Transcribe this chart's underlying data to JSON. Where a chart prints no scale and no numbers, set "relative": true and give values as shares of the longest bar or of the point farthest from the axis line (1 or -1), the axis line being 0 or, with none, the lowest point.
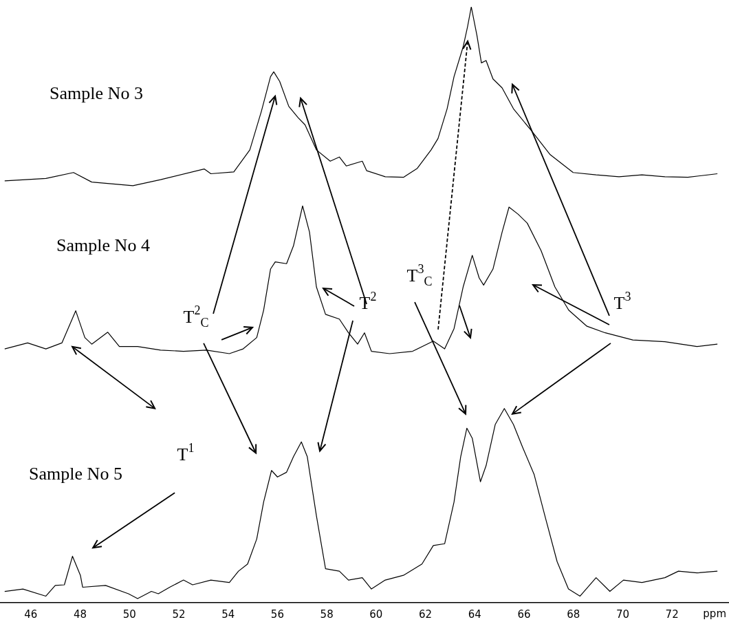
{
  "chart_data": {
    "type": "line",
    "relative": true,
    "xlabel": "ppm",
    "xlim": [
      44.75,
      74.31
    ],
    "xticks": [
      46,
      48,
      50,
      52,
      54,
      56,
      58,
      60,
      62,
      64,
      66,
      68,
      70,
      72
    ],
    "tick_labels": "x",
    "grid": false,
    "legend": false,
    "marker": "none",
    "line_style": "solid",
    "series": [
      {
        "color": "#000000",
        "x": [
          44.94,
          46.61,
          47.73,
          48.47,
          50.14,
          51.26,
          53.03,
          53.3,
          54.23,
          54.88,
          55.35,
          55.72,
          55.85,
          56.09,
          56.46,
          56.84,
          57.12,
          57.58,
          58.14,
          58.51,
          58.79,
          59.44,
          59.62,
          60.37,
          61.11,
          61.67,
          62.23,
          62.51,
          62.88,
          63.16,
          63.53,
          63.71,
          63.86,
          64.09,
          64.27,
          64.46,
          64.74,
          65.11,
          65.57,
          66.32,
          67.06,
          67.99,
          68.92,
          69.85,
          70.78,
          71.71,
          72.64,
          73.84
        ],
        "values": [
          0.708,
          0.712,
          0.722,
          0.706,
          0.7,
          0.71,
          0.728,
          0.72,
          0.723,
          0.76,
          0.825,
          0.883,
          0.891,
          0.875,
          0.833,
          0.814,
          0.802,
          0.76,
          0.741,
          0.748,
          0.733,
          0.741,
          0.725,
          0.715,
          0.714,
          0.729,
          0.76,
          0.779,
          0.829,
          0.883,
          0.933,
          0.967,
          1,
          0.952,
          0.906,
          0.91,
          0.879,
          0.864,
          0.829,
          0.791,
          0.752,
          0.722,
          0.718,
          0.715,
          0.718,
          0.715,
          0.714,
          0.72
        ]
      },
      {
        "color": "#000000",
        "x": [
          44.94,
          45.87,
          46.61,
          47.26,
          47.82,
          48.19,
          48.47,
          49.12,
          49.59,
          50.33,
          51.26,
          52.19,
          53.12,
          54.05,
          54.61,
          55.16,
          55.44,
          55.72,
          55.91,
          56.37,
          56.65,
          57.02,
          57.3,
          57.58,
          57.95,
          58.51,
          58.88,
          59.25,
          59.53,
          59.81,
          60.55,
          61.48,
          62.32,
          62.78,
          63.16,
          63.53,
          63.9,
          64.18,
          64.36,
          64.74,
          65.11,
          65.39,
          65.76,
          66.13,
          66.69,
          67.25,
          67.81,
          68.55,
          69.29,
          70.41,
          71.71,
          73.01,
          73.84
        ],
        "values": [
          0.426,
          0.436,
          0.426,
          0.436,
          0.49,
          0.445,
          0.434,
          0.454,
          0.43,
          0.43,
          0.424,
          0.422,
          0.424,
          0.418,
          0.426,
          0.445,
          0.491,
          0.56,
          0.572,
          0.569,
          0.599,
          0.666,
          0.622,
          0.53,
          0.484,
          0.476,
          0.453,
          0.434,
          0.453,
          0.422,
          0.418,
          0.422,
          0.439,
          0.426,
          0.46,
          0.53,
          0.583,
          0.545,
          0.533,
          0.56,
          0.622,
          0.664,
          0.652,
          0.637,
          0.591,
          0.53,
          0.491,
          0.464,
          0.453,
          0.441,
          0.438,
          0.43,
          0.434
        ]
      },
      {
        "color": "#000000",
        "x": [
          44.94,
          45.68,
          46.61,
          46.99,
          47.36,
          47.69,
          48.01,
          48.1,
          49.03,
          49.96,
          50.33,
          50.89,
          51.17,
          51.63,
          52.19,
          52.56,
          53.3,
          54.05,
          54.42,
          54.79,
          55.16,
          55.44,
          55.76,
          56.0,
          56.37,
          56.65,
          56.97,
          57.21,
          57.58,
          57.95,
          58.51,
          58.88,
          59.44,
          59.81,
          60.37,
          61.11,
          61.86,
          62.32,
          62.78,
          63.16,
          63.43,
          63.68,
          63.9,
          64.23,
          64.46,
          64.83,
          65.2,
          65.57,
          65.94,
          66.41,
          66.87,
          67.34,
          67.8,
          68.27,
          68.92,
          69.48,
          70.03,
          70.78,
          71.71,
          72.26,
          73.01,
          73.84
        ],
        "values": [
          0.019,
          0.023,
          0.011,
          0.029,
          0.03,
          0.078,
          0.046,
          0.026,
          0.029,
          0.015,
          0.007,
          0.019,
          0.015,
          0.026,
          0.038,
          0.03,
          0.038,
          0.034,
          0.053,
          0.065,
          0.107,
          0.169,
          0.222,
          0.211,
          0.219,
          0.245,
          0.27,
          0.245,
          0.146,
          0.057,
          0.053,
          0.038,
          0.042,
          0.023,
          0.038,
          0.046,
          0.065,
          0.096,
          0.099,
          0.169,
          0.245,
          0.293,
          0.276,
          0.203,
          0.23,
          0.299,
          0.326,
          0.299,
          0.261,
          0.215,
          0.142,
          0.069,
          0.023,
          0.011,
          0.042,
          0.019,
          0.038,
          0.034,
          0.042,
          0.053,
          0.05,
          0.053
        ]
      }
    ],
    "annotations": [
      "Sample No 3",
      "Sample No 4",
      "Sample No 5",
      "T$^{2}$$_{C}$",
      "T$^{2}$",
      "T$^{3}$$_{C}$",
      "T$^{3}$",
      "T$^{1}$"
    ]
  }
}
